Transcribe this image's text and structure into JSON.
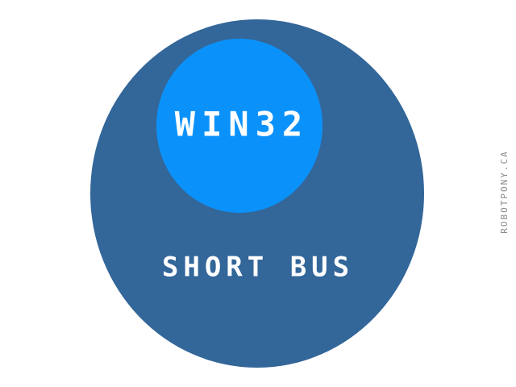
{
  "diagram": {
    "outer_set": {
      "label": "SHORT BUS",
      "color": "#336699"
    },
    "inner_set": {
      "label": "WIN32",
      "color": "#0B92FA"
    },
    "credit": "ROBOTPONY.CA",
    "text_color": "#ffffff",
    "credit_color": "#8a8a8a"
  }
}
